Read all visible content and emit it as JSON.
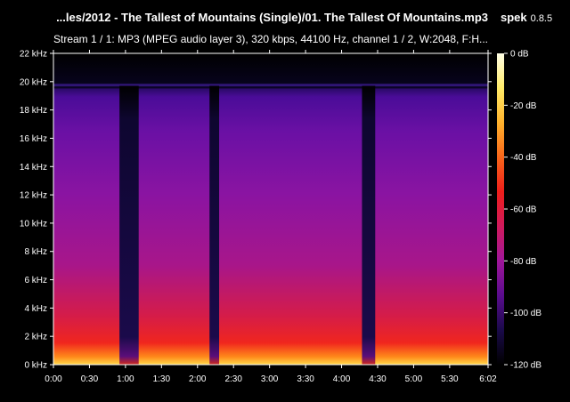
{
  "header": {
    "file_title": "...les/2012 - The Tallest of Mountains (Single)/01. The Tallest Of Mountains.mp3",
    "app_name": "spek",
    "app_version": "0.8.5",
    "stream_info": "Stream 1 / 1: MP3 (MPEG audio layer 3), 320 kbps, 44100 Hz, channel 1 / 2, W:2048, F:H..."
  },
  "chart_data": {
    "type": "heatmap",
    "title": "",
    "xlabel": "",
    "ylabel": "",
    "x_ticks": [
      "0:00",
      "0:30",
      "1:00",
      "1:30",
      "2:00",
      "2:30",
      "3:00",
      "3:30",
      "4:00",
      "4:30",
      "5:00",
      "5:30",
      "6:02"
    ],
    "y_ticks": [
      "0 kHz",
      "2 kHz",
      "4 kHz",
      "6 kHz",
      "8 kHz",
      "10 kHz",
      "12 kHz",
      "14 kHz",
      "16 kHz",
      "18 kHz",
      "20 kHz",
      "22 kHz"
    ],
    "xlim_seconds": [
      0,
      362
    ],
    "ylim_khz": [
      0,
      22
    ],
    "lowpass_cutoff_khz": 19.5,
    "quiet_sections_seconds": [
      [
        55,
        71
      ],
      [
        130,
        138
      ],
      [
        257,
        268
      ]
    ],
    "colorbar": {
      "ticks": [
        "0 dB",
        "-20 dB",
        "-40 dB",
        "-60 dB",
        "-80 dB",
        "-100 dB",
        "-120 dB"
      ],
      "range_db": [
        -120,
        0
      ],
      "colors": [
        "#000000",
        "#1a0a4a",
        "#5a0c8e",
        "#a0169a",
        "#d01a5c",
        "#ee1e1a",
        "#f9661a",
        "#ffb22c",
        "#ffeb68",
        "#ffffe6"
      ]
    }
  }
}
